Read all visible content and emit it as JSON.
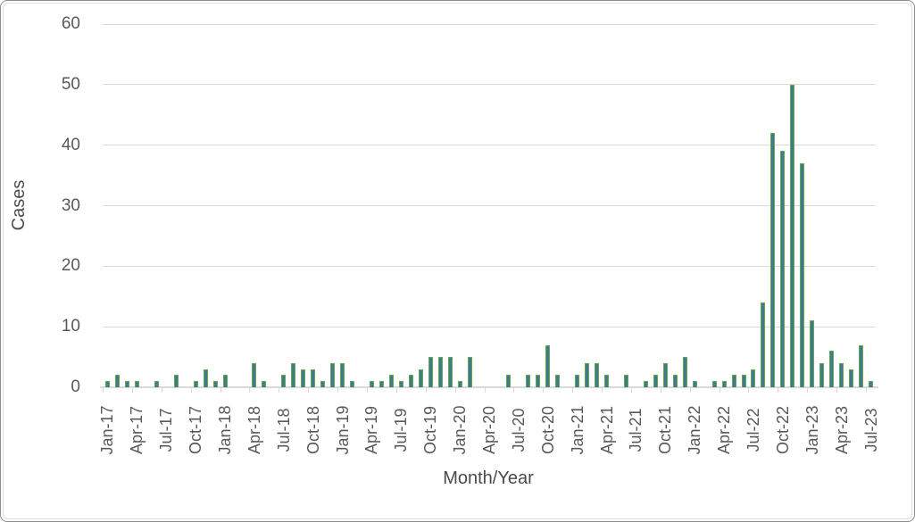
{
  "chart_data": {
    "type": "bar",
    "title": "",
    "xlabel": "Month/Year",
    "ylabel": "Cases",
    "ylim": [
      0,
      60
    ],
    "y_ticks": [
      0,
      10,
      20,
      30,
      40,
      50,
      60
    ],
    "grid": "horizontal",
    "legend": "none",
    "x_tick_interval_months": 3,
    "x_tick_labels": [
      "Jan-17",
      "Apr-17",
      "Jul-17",
      "Oct-17",
      "Jan-18",
      "Apr-18",
      "Jul-18",
      "Oct-18",
      "Jan-19",
      "Apr-19",
      "Jul-19",
      "Oct-19",
      "Jan-20",
      "Apr-20",
      "Jul-20",
      "Oct-20",
      "Jan-21",
      "Apr-21",
      "Jul-21",
      "Oct-21",
      "Jan-22",
      "Apr-22",
      "Jul-22",
      "Oct-22",
      "Jan-23",
      "Apr-23",
      "Jul-23"
    ],
    "categories": [
      "Jan-17",
      "Feb-17",
      "Mar-17",
      "Apr-17",
      "May-17",
      "Jun-17",
      "Jul-17",
      "Aug-17",
      "Sep-17",
      "Oct-17",
      "Nov-17",
      "Dec-17",
      "Jan-18",
      "Feb-18",
      "Mar-18",
      "Apr-18",
      "May-18",
      "Jun-18",
      "Jul-18",
      "Aug-18",
      "Sep-18",
      "Oct-18",
      "Nov-18",
      "Dec-18",
      "Jan-19",
      "Feb-19",
      "Mar-19",
      "Apr-19",
      "May-19",
      "Jun-19",
      "Jul-19",
      "Aug-19",
      "Sep-19",
      "Oct-19",
      "Nov-19",
      "Dec-19",
      "Jan-20",
      "Feb-20",
      "Mar-20",
      "Apr-20",
      "May-20",
      "Jun-20",
      "Jul-20",
      "Aug-20",
      "Sep-20",
      "Oct-20",
      "Nov-20",
      "Dec-20",
      "Jan-21",
      "Feb-21",
      "Mar-21",
      "Apr-21",
      "May-21",
      "Jun-21",
      "Jul-21",
      "Aug-21",
      "Sep-21",
      "Oct-21",
      "Nov-21",
      "Dec-21",
      "Jan-22",
      "Feb-22",
      "Mar-22",
      "Apr-22",
      "May-22",
      "Jun-22",
      "Jul-22",
      "Aug-22",
      "Sep-22",
      "Oct-22",
      "Nov-22",
      "Dec-22",
      "Jan-23",
      "Feb-23",
      "Mar-23",
      "Apr-23",
      "May-23",
      "Jun-23",
      "Jul-23"
    ],
    "values": [
      1,
      2,
      1,
      1,
      0,
      1,
      0,
      2,
      0,
      1,
      3,
      1,
      2,
      0,
      0,
      4,
      1,
      0,
      2,
      4,
      3,
      3,
      1,
      4,
      4,
      1,
      0,
      1,
      1,
      2,
      1,
      2,
      3,
      5,
      5,
      5,
      1,
      5,
      0,
      0,
      0,
      2,
      0,
      2,
      2,
      7,
      2,
      0,
      2,
      4,
      4,
      2,
      0,
      2,
      0,
      1,
      2,
      4,
      2,
      5,
      1,
      0,
      1,
      1,
      2,
      2,
      3,
      14,
      42,
      39,
      50,
      37,
      11,
      4,
      6,
      4,
      3,
      7,
      1
    ],
    "colors": {
      "bar_fill": "#3e7b8c",
      "bar_border": "#67a74f",
      "gridline": "#d9d9d9",
      "axis_text": "#595959",
      "axis_title_text": "#4a4a4a",
      "background": "#ffffff",
      "frame_border": "#8c8c8c"
    }
  }
}
